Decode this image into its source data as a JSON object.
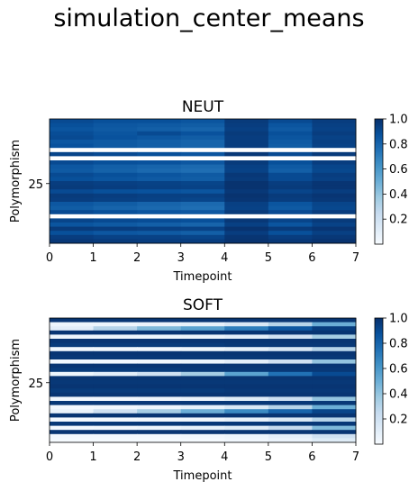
{
  "suptitle": "simulation_center_means",
  "colors": {
    "cmap_low": "#f7fbff",
    "cmap_high": "#08306b",
    "row_gap": "#ffffff"
  },
  "chart_data": [
    {
      "type": "heatmap",
      "title": "NEUT",
      "xlabel": "Timepoint",
      "ylabel": "Polymorphism",
      "x_ticks": [
        "0",
        "1",
        "2",
        "3",
        "4",
        "5",
        "6",
        "7"
      ],
      "y_ticks": [
        "25"
      ],
      "y_tick_row": 25,
      "cmap": "Blues",
      "colorbar_ticks": [
        "0.2",
        "0.4",
        "0.6",
        "0.8",
        "1.0"
      ],
      "clim": [
        0,
        1
      ],
      "rows": [
        [
          0.9,
          0.88,
          0.88,
          0.86,
          0.96,
          0.9,
          0.95
        ],
        [
          0.88,
          0.85,
          0.84,
          0.83,
          0.95,
          0.86,
          0.94
        ],
        [
          0.86,
          0.84,
          0.82,
          0.8,
          0.94,
          0.84,
          0.93
        ],
        [
          0.89,
          0.86,
          0.9,
          0.87,
          0.96,
          0.88,
          0.95
        ],
        [
          0.9,
          0.87,
          0.85,
          0.83,
          0.95,
          0.86,
          0.93
        ],
        [
          0.85,
          0.84,
          0.82,
          0.8,
          0.95,
          0.84,
          0.94
        ],
        [
          0.87,
          0.84,
          0.82,
          0.8,
          0.95,
          0.83,
          0.93
        ],
        null,
        [
          0.92,
          0.9,
          0.88,
          0.86,
          0.97,
          0.9,
          0.96
        ],
        null,
        [
          0.9,
          0.88,
          0.87,
          0.85,
          0.96,
          0.88,
          0.95
        ],
        [
          0.85,
          0.82,
          0.8,
          0.78,
          0.94,
          0.84,
          0.92
        ],
        [
          0.84,
          0.81,
          0.78,
          0.76,
          0.93,
          0.82,
          0.91
        ],
        [
          0.9,
          0.88,
          0.86,
          0.84,
          0.97,
          0.9,
          0.95
        ],
        [
          0.88,
          0.86,
          0.84,
          0.83,
          0.96,
          0.9,
          0.94
        ],
        [
          0.95,
          0.94,
          0.93,
          0.92,
          0.99,
          0.95,
          0.98
        ],
        [
          0.96,
          0.95,
          0.94,
          0.93,
          0.99,
          0.96,
          0.98
        ],
        [
          0.9,
          0.88,
          0.87,
          0.86,
          0.97,
          0.92,
          0.95
        ],
        [
          0.96,
          0.95,
          0.94,
          0.94,
          0.99,
          0.96,
          0.98
        ],
        [
          0.95,
          0.94,
          0.93,
          0.92,
          0.98,
          0.95,
          0.97
        ],
        [
          0.85,
          0.83,
          0.8,
          0.78,
          0.94,
          0.86,
          0.92
        ],
        [
          0.83,
          0.8,
          0.78,
          0.76,
          0.93,
          0.84,
          0.91
        ],
        [
          0.9,
          0.88,
          0.86,
          0.85,
          0.96,
          0.9,
          0.95
        ],
        null,
        [
          0.92,
          0.9,
          0.89,
          0.88,
          0.97,
          0.92,
          0.96
        ],
        [
          0.86,
          0.84,
          0.82,
          0.8,
          0.94,
          0.86,
          0.93
        ],
        [
          0.96,
          0.95,
          0.94,
          0.93,
          0.99,
          0.96,
          0.98
        ],
        [
          0.88,
          0.85,
          0.84,
          0.82,
          0.95,
          0.88,
          0.94
        ],
        [
          0.95,
          0.93,
          0.93,
          0.92,
          0.98,
          0.95,
          0.97
        ],
        [
          0.97,
          0.96,
          0.95,
          0.95,
          0.99,
          0.97,
          0.99
        ]
      ]
    },
    {
      "type": "heatmap",
      "title": "SOFT",
      "xlabel": "Timepoint",
      "ylabel": "Polymorphism",
      "x_ticks": [
        "0",
        "1",
        "2",
        "3",
        "4",
        "5",
        "6",
        "7"
      ],
      "y_ticks": [
        "25"
      ],
      "y_tick_row": 25,
      "cmap": "Blues",
      "colorbar_ticks": [
        "0.2",
        "0.4",
        "0.6",
        "0.8",
        "1.0"
      ],
      "clim": [
        0,
        1
      ],
      "rows": [
        [
          0.98,
          0.98,
          0.98,
          0.98,
          0.98,
          0.98,
          0.98
        ],
        [
          0.05,
          0.05,
          0.06,
          0.08,
          0.15,
          0.3,
          0.5
        ],
        [
          0.1,
          0.3,
          0.45,
          0.55,
          0.7,
          0.85,
          0.95
        ],
        [
          0.98,
          0.98,
          0.98,
          0.98,
          0.98,
          0.98,
          0.98
        ],
        [
          0.05,
          0.05,
          0.05,
          0.06,
          0.1,
          0.2,
          0.35
        ],
        [
          0.98,
          0.98,
          0.98,
          0.98,
          0.98,
          0.98,
          0.98
        ],
        [
          0.96,
          0.96,
          0.96,
          0.96,
          0.97,
          0.97,
          0.97
        ],
        [
          0.03,
          0.03,
          0.03,
          0.04,
          0.08,
          0.15,
          0.3
        ],
        [
          0.98,
          0.98,
          0.98,
          0.98,
          0.98,
          0.98,
          0.98
        ],
        [
          0.97,
          0.97,
          0.97,
          0.97,
          0.97,
          0.97,
          0.97
        ],
        [
          0.02,
          0.02,
          0.03,
          0.05,
          0.1,
          0.2,
          0.4
        ],
        [
          0.98,
          0.98,
          0.98,
          0.98,
          0.98,
          0.98,
          0.98
        ],
        [
          0.96,
          0.96,
          0.96,
          0.97,
          0.97,
          0.97,
          0.97
        ],
        [
          0.05,
          0.1,
          0.2,
          0.35,
          0.55,
          0.75,
          0.9
        ],
        [
          0.98,
          0.98,
          0.98,
          0.98,
          0.98,
          0.98,
          0.98
        ],
        [
          0.97,
          0.97,
          0.97,
          0.97,
          0.97,
          0.97,
          0.97
        ],
        [
          0.98,
          0.98,
          0.98,
          0.98,
          0.98,
          0.98,
          0.98
        ],
        [
          0.96,
          0.96,
          0.96,
          0.96,
          0.97,
          0.97,
          0.97
        ],
        [
          0.98,
          0.98,
          0.98,
          0.98,
          0.98,
          0.98,
          0.98
        ],
        [
          0.03,
          0.03,
          0.04,
          0.06,
          0.12,
          0.22,
          0.4
        ],
        [
          0.97,
          0.97,
          0.97,
          0.97,
          0.97,
          0.97,
          0.97
        ],
        [
          0.02,
          0.03,
          0.05,
          0.08,
          0.15,
          0.3,
          0.5
        ],
        [
          0.06,
          0.2,
          0.35,
          0.5,
          0.65,
          0.8,
          0.92
        ],
        [
          0.98,
          0.98,
          0.98,
          0.98,
          0.98,
          0.98,
          0.98
        ],
        [
          0.02,
          0.02,
          0.03,
          0.04,
          0.08,
          0.15,
          0.3
        ],
        [
          0.97,
          0.97,
          0.97,
          0.97,
          0.97,
          0.97,
          0.97
        ],
        [
          0.02,
          0.03,
          0.05,
          0.08,
          0.12,
          0.25,
          0.45
        ],
        [
          0.98,
          0.98,
          0.98,
          0.98,
          0.98,
          0.98,
          0.98
        ],
        [
          0.02,
          0.02,
          0.02,
          0.03,
          0.05,
          0.1,
          0.2
        ],
        [
          0.01,
          0.01,
          0.01,
          0.01,
          0.03,
          0.06,
          0.12
        ]
      ]
    }
  ]
}
